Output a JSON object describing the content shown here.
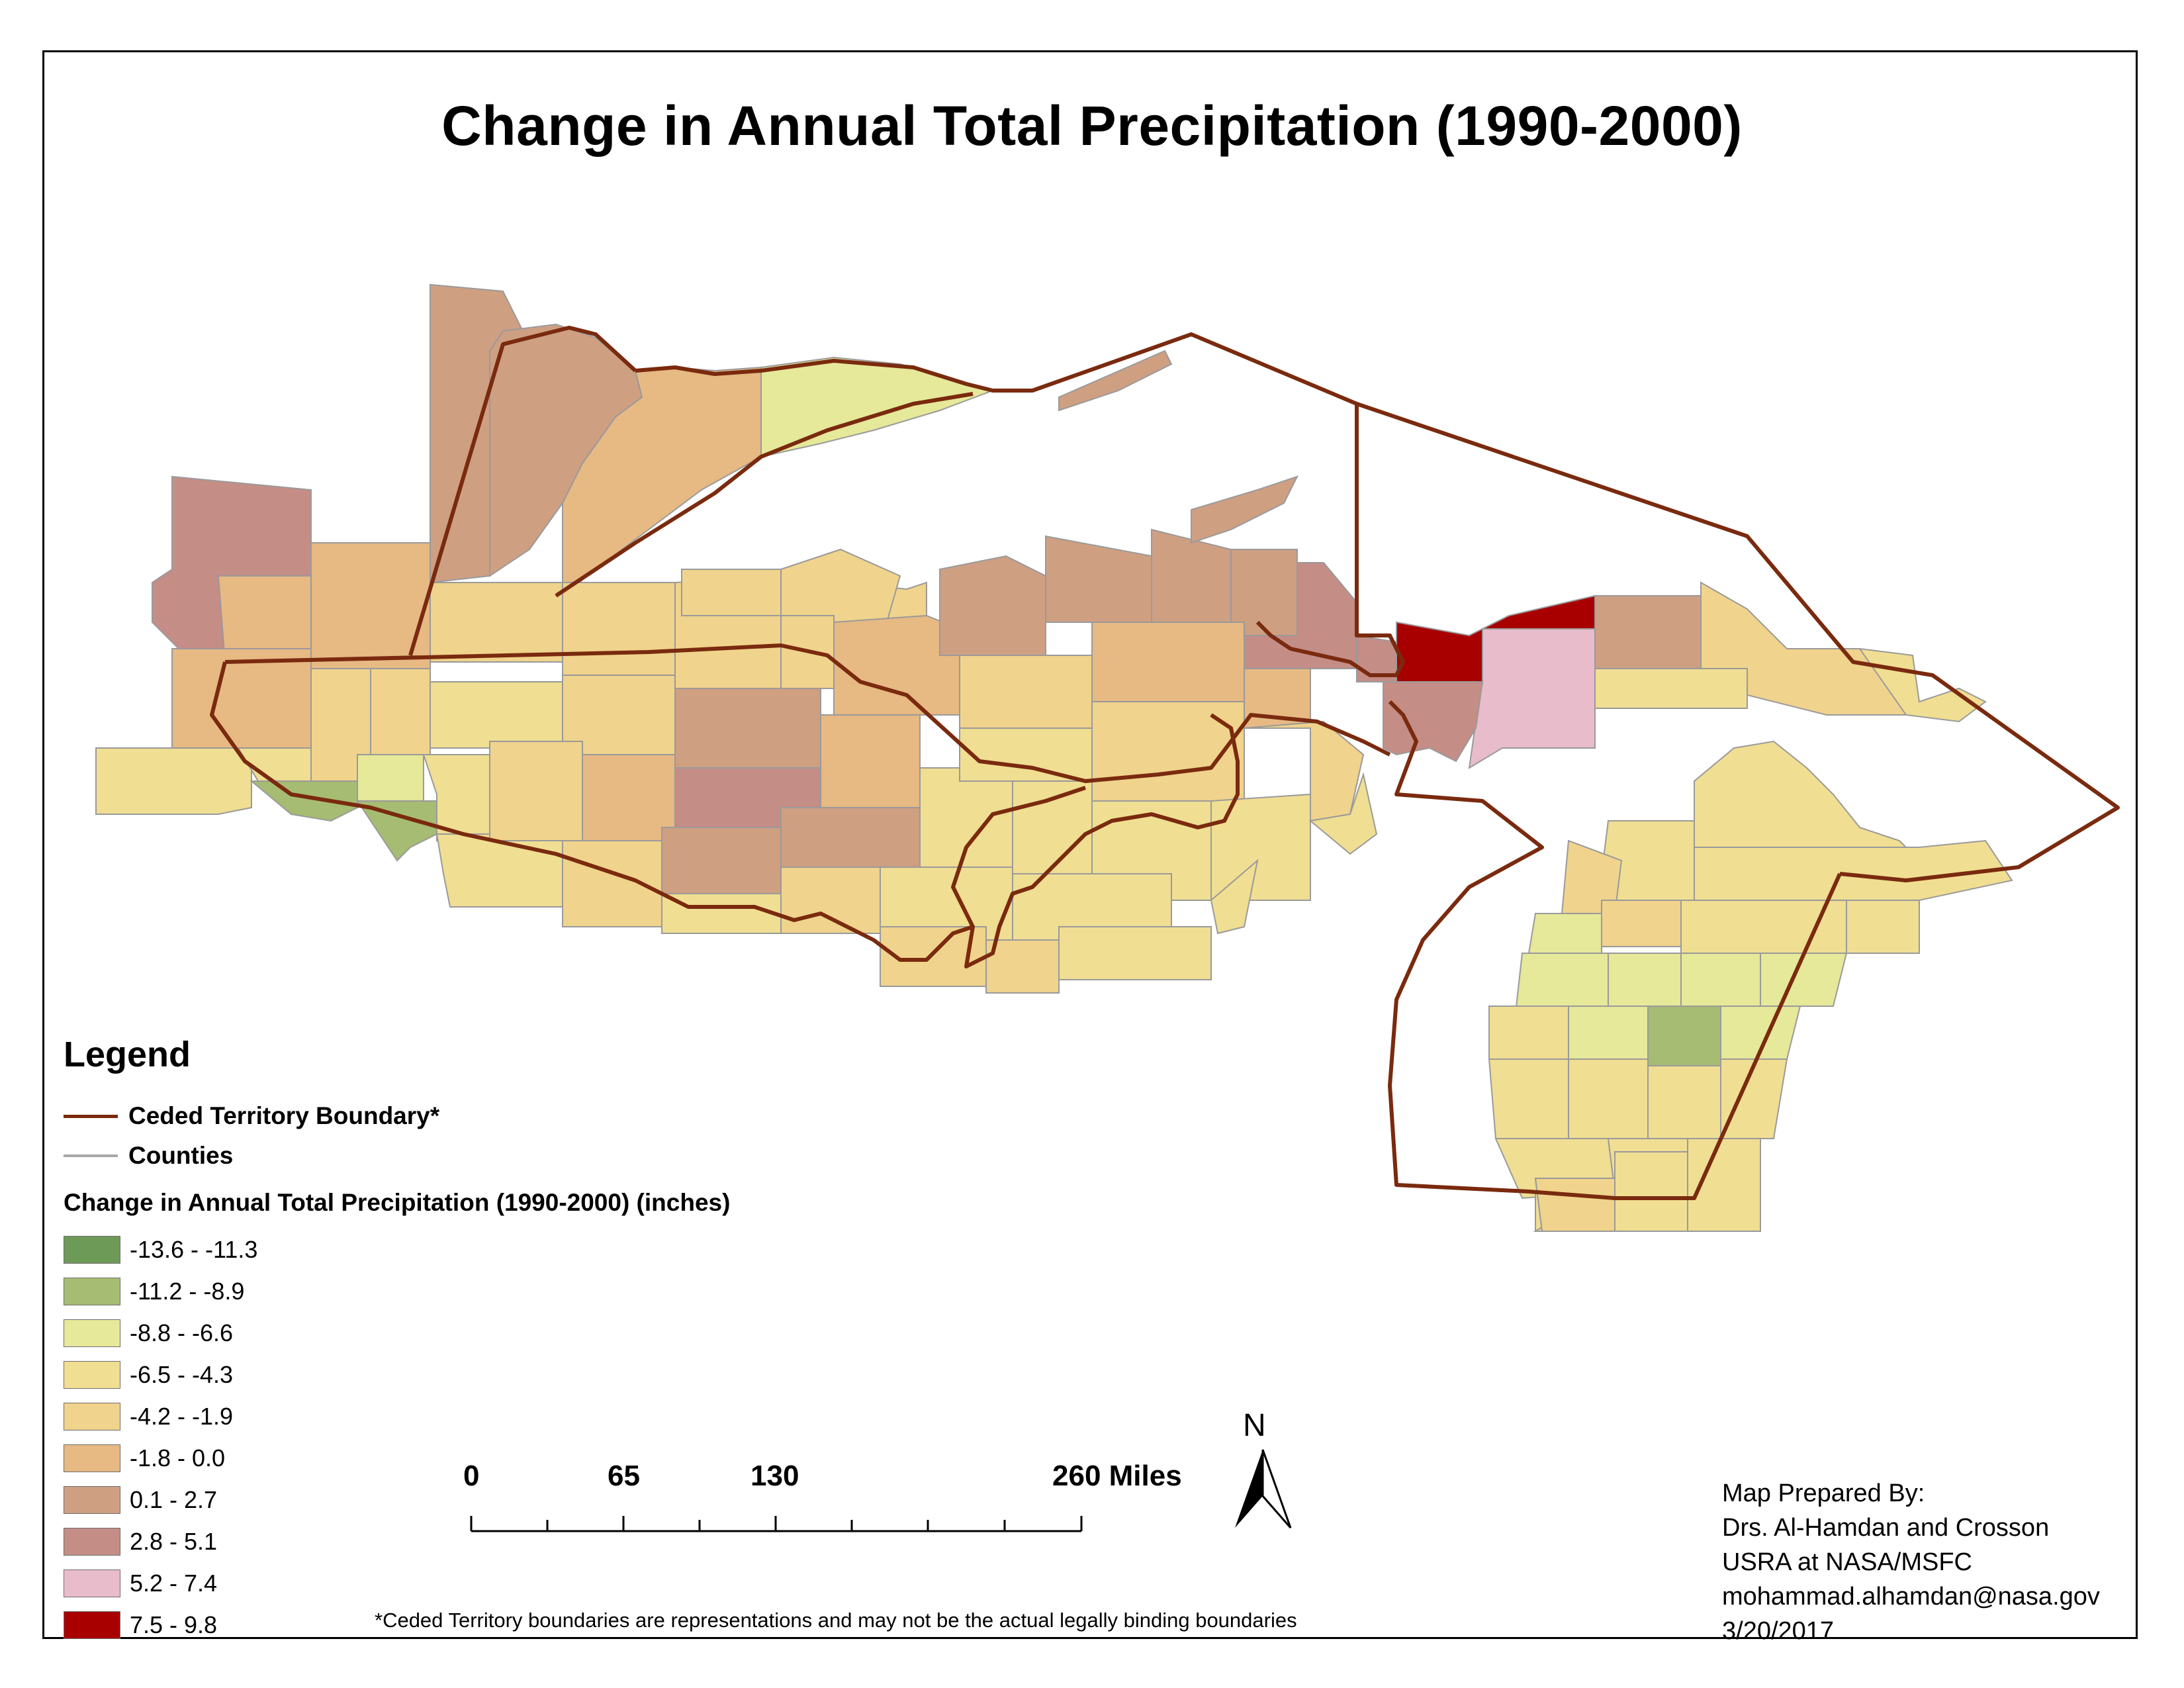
{
  "title": "Change in Annual Total Precipitation (1990-2000)",
  "legend": {
    "heading": "Legend",
    "line_items": [
      {
        "label": "Ceded Territory Boundary*",
        "color": "#7a2a0e"
      },
      {
        "label": "Counties",
        "color": "#a8a8a8"
      }
    ],
    "field_title": "Change in Annual Total Precipitation (1990-2000) (inches)",
    "classes": [
      {
        "label": "-13.6 - -11.3",
        "color": "#6e9a57"
      },
      {
        "label": "-11.2 - -8.9",
        "color": "#a6bc72"
      },
      {
        "label": "-8.8 - -6.6",
        "color": "#e6e89a"
      },
      {
        "label": "-6.5 - -4.3",
        "color": "#f0de92"
      },
      {
        "label": "-4.2 - -1.9",
        "color": "#f0d38c"
      },
      {
        "label": "-1.8 - 0.0",
        "color": "#e7b983"
      },
      {
        "label": "0.1 - 2.7",
        "color": "#cf9f82"
      },
      {
        "label": "2.8 - 5.1",
        "color": "#c48d86"
      },
      {
        "label": "5.2 - 7.4",
        "color": "#e8bccb"
      },
      {
        "label": "7.5 - 9.8",
        "color": "#a80000"
      }
    ]
  },
  "scale_bar": {
    "labels": [
      "0",
      "65",
      "130",
      "260 Miles"
    ],
    "values": [
      0,
      65,
      130,
      260
    ]
  },
  "north_arrow": {
    "label": "N"
  },
  "credits": [
    "Map Prepared By:",
    "Drs. Al-Hamdan and Crosson",
    "USRA at NASA/MSFC",
    "mohammad.alhamdan@nasa.gov",
    "3/20/2017"
  ],
  "footnote": "*Ceded Territory boundaries are representations and may not be the actual legally binding boundaries",
  "colors": {
    "boundary": "#7a2a0e",
    "county_line": "#9a9a9a",
    "land_default": "#f0de92"
  }
}
